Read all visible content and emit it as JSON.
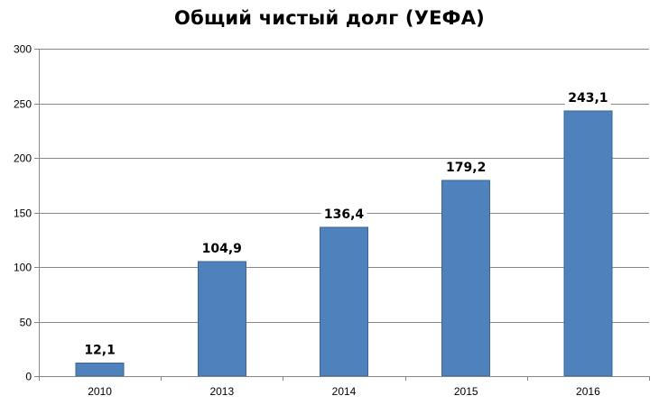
{
  "chart_data": {
    "type": "bar",
    "title": "Общий чистый долг (УЕФА)",
    "categories": [
      "2010",
      "2013",
      "2014",
      "2015",
      "2016"
    ],
    "values": [
      12.1,
      104.9,
      136.4,
      179.2,
      243.1
    ],
    "data_labels": [
      "12,1",
      "104,9",
      "136,4",
      "179,2",
      "243,1"
    ],
    "xlabel": "",
    "ylabel": "",
    "ylim": [
      0,
      300
    ],
    "yticks": [
      0,
      50,
      100,
      150,
      200,
      250,
      300
    ],
    "grid": true,
    "legend": "none",
    "bar_color": "#4F81BD",
    "bar_border_color": "#3A6594"
  }
}
